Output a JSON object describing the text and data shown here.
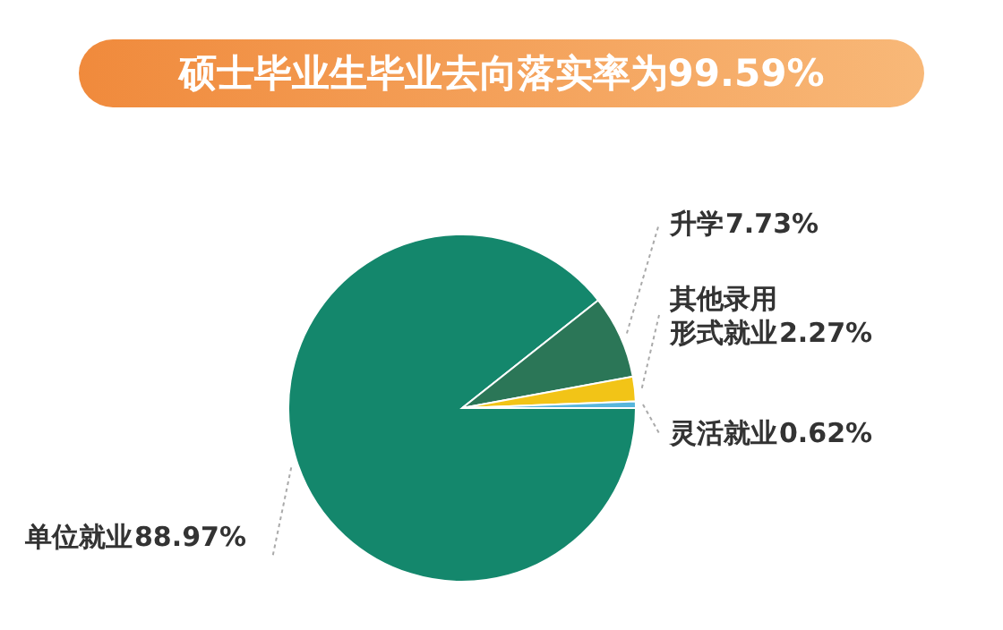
{
  "chart_data": {
    "type": "pie",
    "title": "硕士毕业生毕业去向落实率为99.59%",
    "categories": [
      "单位就业",
      "升学",
      "其他录用形式就业",
      "灵活就业"
    ],
    "values": [
      88.97,
      7.73,
      2.27,
      0.62
    ],
    "value_labels": [
      "88.97%",
      "7.73%",
      "2.27%",
      "0.62%"
    ],
    "colors": [
      "#14876c",
      "#2b7657",
      "#f2c417",
      "#58b6dc"
    ]
  }
}
